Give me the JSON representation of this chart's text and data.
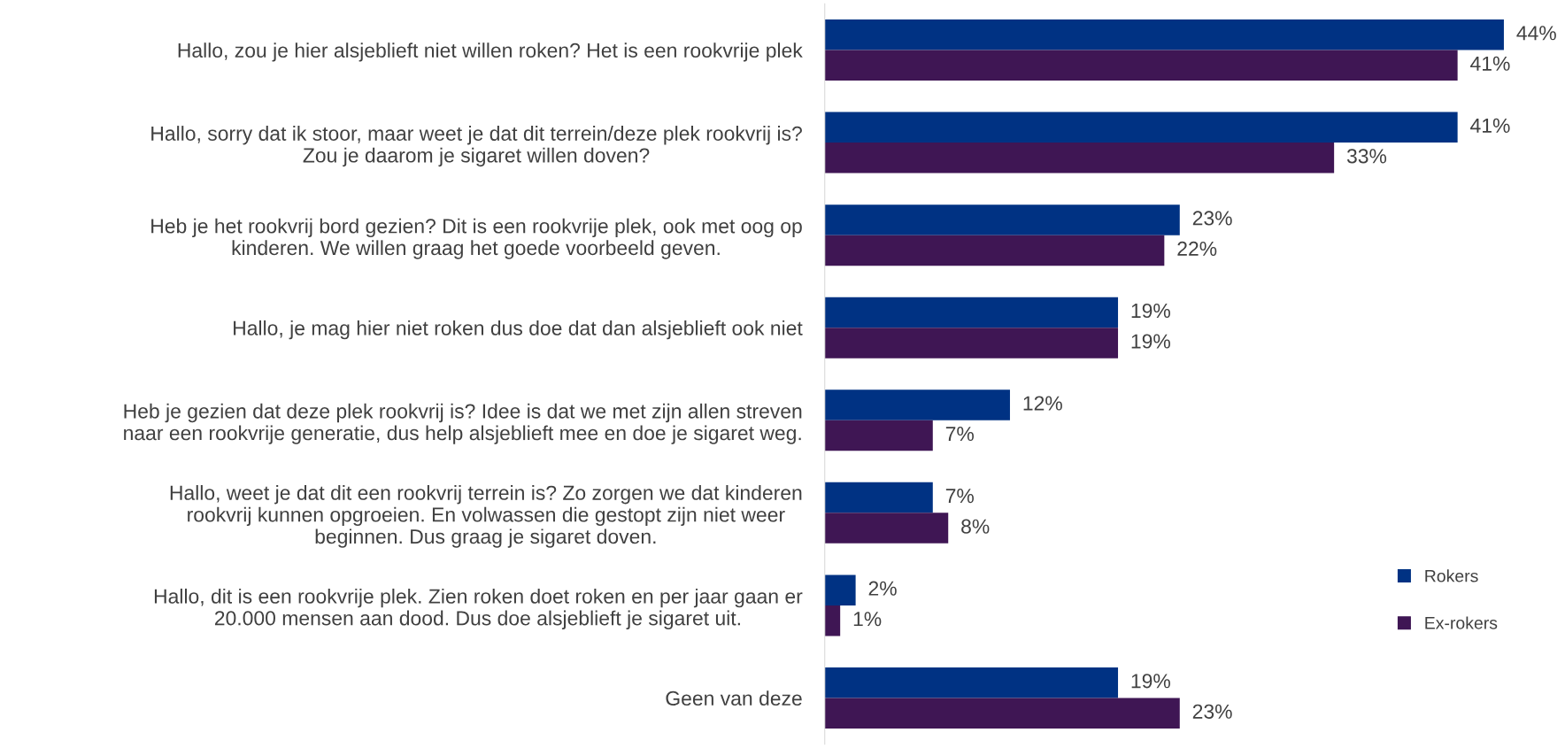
{
  "chart_data": {
    "type": "bar",
    "orientation": "horizontal",
    "categories": [
      "Hallo, zou je hier alsjeblieft niet willen roken? Het is een rookvrije plek",
      "Hallo, sorry dat ik stoor, maar weet je dat dit terrein/deze plek rookvrij is?\nZou je daarom je sigaret willen doven?",
      "Heb je het rookvrij bord gezien? Dit is een rookvrije plek, ook met oog op\nkinderen. We willen graag het goede voorbeeld geven.",
      "Hallo, je mag hier niet roken dus doe dat dan alsjeblieft ook niet",
      "Heb je gezien dat deze plek rookvrij is? Idee is dat we met zijn allen streven\nnaar een rookvrije generatie, dus help alsjeblieft mee en doe je sigaret weg.",
      "Hallo, weet je dat dit een rookvrij terrein is? Zo zorgen we dat kinderen\nrookvrij kunnen opgroeien. En volwassen die gestopt zijn niet weer\nbeginnen. Dus graag je sigaret doven.",
      "Hallo, dit is een rookvrije plek. Zien roken doet roken en per jaar gaan er\n20.000 mensen aan dood. Dus doe alsjeblieft je sigaret uit.",
      "Geen van deze"
    ],
    "series": [
      {
        "name": "Rokers",
        "color": "#003283",
        "values": [
          44,
          41,
          23,
          19,
          12,
          7,
          2,
          19
        ],
        "value_labels": [
          "44%",
          "41%",
          "23%",
          "19%",
          "12%",
          "7%",
          "2%",
          "19%"
        ]
      },
      {
        "name": "Ex-rokers",
        "color": "#3f1654",
        "values": [
          41,
          33,
          22,
          19,
          7,
          8,
          1,
          23
        ],
        "value_labels": [
          "41%",
          "33%",
          "22%",
          "19%",
          "7%",
          "8%",
          "1%",
          "23%"
        ]
      }
    ],
    "tick_labels": "y",
    "grid": false,
    "legend": "lower right"
  }
}
